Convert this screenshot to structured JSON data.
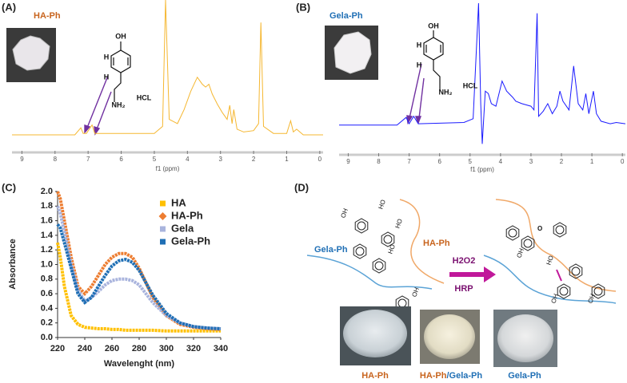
{
  "chart_data": [
    {
      "type": "nmr",
      "label": "(A)",
      "title": "HA-Ph",
      "xlabel": "f1 (ppm)",
      "color": "#f5b731",
      "structure_labels": [
        "OH",
        "H",
        "H",
        "NH₂",
        "HCL"
      ],
      "xlim": [
        9.3,
        -0.1
      ],
      "ylim": [
        0,
        100
      ],
      "xticks": [
        9,
        8,
        7,
        6,
        5,
        4,
        3,
        2,
        1,
        0
      ],
      "x": [
        9.3,
        7.4,
        7.22,
        7.15,
        7.05,
        6.88,
        6.8,
        5.0,
        4.75,
        4.66,
        4.55,
        4.3,
        4.1,
        3.9,
        3.7,
        3.55,
        3.45,
        3.35,
        3.25,
        3.1,
        2.95,
        2.8,
        2.72,
        2.65,
        2.6,
        2.5,
        2.3,
        2.0,
        1.85,
        1.78,
        1.7,
        1.4,
        1.0,
        0.88,
        0.8,
        0.7,
        0.5,
        -0.1
      ],
      "values": [
        4,
        4,
        9,
        5,
        5,
        11,
        5,
        5,
        10,
        100,
        15,
        12,
        22,
        35,
        45,
        40,
        38,
        40,
        33,
        26,
        20,
        15,
        25,
        12,
        22,
        8,
        6,
        7,
        12,
        84,
        10,
        5,
        5,
        14,
        6,
        8,
        4,
        4
      ]
    },
    {
      "type": "nmr",
      "label": "(B)",
      "title": "Gela-Ph",
      "xlabel": "f1 (ppm)",
      "color": "#1a1aff",
      "structure_labels": [
        "OH",
        "H",
        "H",
        "NH₂",
        "HCL"
      ],
      "xlim": [
        9.3,
        -0.1
      ],
      "ylim": [
        -15,
        100
      ],
      "xticks": [
        9,
        8,
        7,
        6,
        5,
        4,
        3,
        2,
        1,
        0
      ],
      "x": [
        9.3,
        7.4,
        7.1,
        7.0,
        6.85,
        6.7,
        5.2,
        4.9,
        4.72,
        4.65,
        4.6,
        4.5,
        4.4,
        4.3,
        4.15,
        3.95,
        3.8,
        3.6,
        3.5,
        3.3,
        3.0,
        2.9,
        2.8,
        2.75,
        2.6,
        2.45,
        2.3,
        2.15,
        2.05,
        1.95,
        1.75,
        1.6,
        1.45,
        1.3,
        1.2,
        1.1,
        0.95,
        0.85,
        0.7,
        0.4,
        0.2,
        -0.1
      ],
      "values": [
        3,
        3,
        9,
        4,
        10,
        4,
        5,
        8,
        100,
        20,
        -12,
        30,
        28,
        20,
        18,
        38,
        30,
        25,
        22,
        20,
        18,
        15,
        92,
        10,
        14,
        20,
        12,
        18,
        30,
        22,
        15,
        50,
        20,
        15,
        28,
        12,
        30,
        12,
        6,
        4,
        5,
        4
      ]
    },
    {
      "type": "line",
      "label": "(C)",
      "xlabel": "Wavelenght (nm)",
      "ylabel": "Absorbance",
      "xlim": [
        220,
        340
      ],
      "ylim": [
        0,
        2
      ],
      "xticks": [
        220,
        240,
        260,
        280,
        300,
        320,
        340
      ],
      "yticks": [
        {
          "value": 0,
          "label": "0.0"
        },
        0.2,
        0.4,
        0.6,
        0.8,
        {
          "value": 1,
          "label": "1.0"
        },
        1.2,
        1.4,
        1.6,
        1.8,
        {
          "value": 2,
          "label": "2.0"
        }
      ],
      "legend": "upper right",
      "x": [
        220,
        222,
        225,
        230,
        235,
        240,
        245,
        250,
        255,
        260,
        265,
        270,
        275,
        280,
        285,
        290,
        300,
        310,
        320,
        330,
        340
      ],
      "series": [
        {
          "name": "HA",
          "color": "#ffc000",
          "values": [
            1.3,
            1.1,
            0.7,
            0.3,
            0.18,
            0.14,
            0.13,
            0.12,
            0.12,
            0.11,
            0.11,
            0.1,
            0.1,
            0.1,
            0.1,
            0.1,
            0.09,
            0.09,
            0.09,
            0.09,
            0.09
          ]
        },
        {
          "name": "HA-Ph",
          "color": "#ed7d31",
          "values": [
            2.0,
            1.9,
            1.6,
            1.1,
            0.7,
            0.6,
            0.7,
            0.85,
            1.0,
            1.1,
            1.15,
            1.15,
            1.1,
            0.95,
            0.75,
            0.55,
            0.3,
            0.18,
            0.14,
            0.12,
            0.11
          ]
        },
        {
          "name": "Gela",
          "color": "#a9b4dd",
          "values": [
            1.8,
            1.7,
            1.45,
            1.0,
            0.65,
            0.5,
            0.55,
            0.63,
            0.72,
            0.78,
            0.8,
            0.8,
            0.78,
            0.72,
            0.6,
            0.48,
            0.3,
            0.2,
            0.15,
            0.13,
            0.12
          ]
        },
        {
          "name": "Gela-Ph",
          "color": "#1f6fb5",
          "values": [
            1.55,
            1.5,
            1.3,
            0.95,
            0.6,
            0.48,
            0.55,
            0.7,
            0.85,
            0.98,
            1.05,
            1.07,
            1.03,
            0.92,
            0.75,
            0.58,
            0.33,
            0.2,
            0.15,
            0.13,
            0.12
          ]
        }
      ]
    }
  ],
  "diagram": {
    "label": "(D)",
    "polymer_a": "Gela-Ph",
    "polymer_b": "HA-Ph",
    "hydroxyls": [
      "HO",
      "HO",
      "HO",
      "OH",
      "OH"
    ],
    "crosslinks": [
      "O",
      "OH",
      "HO",
      "OH",
      "OH"
    ],
    "reagent": "H2O2",
    "enzyme": "HRP",
    "photos": [
      {
        "caption": "HA-Ph"
      },
      {
        "caption": [
          "HA-Ph",
          "/Gela-Ph"
        ]
      },
      {
        "caption": "Gela-Ph"
      }
    ]
  }
}
